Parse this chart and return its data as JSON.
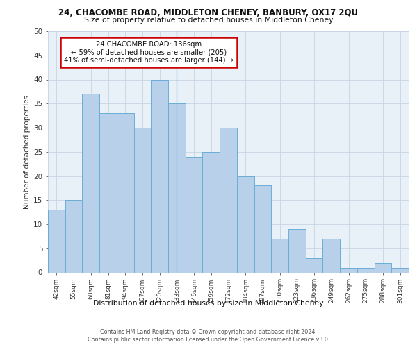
{
  "title1": "24, CHACOMBE ROAD, MIDDLETON CHENEY, BANBURY, OX17 2QU",
  "title2": "Size of property relative to detached houses in Middleton Cheney",
  "xlabel": "Distribution of detached houses by size in Middleton Cheney",
  "ylabel": "Number of detached properties",
  "bin_labels": [
    "42sqm",
    "55sqm",
    "68sqm",
    "81sqm",
    "94sqm",
    "107sqm",
    "120sqm",
    "133sqm",
    "146sqm",
    "159sqm",
    "172sqm",
    "184sqm",
    "197sqm",
    "210sqm",
    "223sqm",
    "236sqm",
    "249sqm",
    "262sqm",
    "275sqm",
    "288sqm",
    "301sqm"
  ],
  "bar_heights": [
    13,
    15,
    37,
    33,
    33,
    30,
    40,
    35,
    24,
    25,
    30,
    20,
    18,
    7,
    9,
    3,
    7,
    1,
    1,
    2,
    1
  ],
  "bar_color": "#b8d0ea",
  "bar_edge_color": "#6aaed6",
  "highlight_index": 7,
  "annotation_line1": "24 CHACOMBE ROAD: 136sqm",
  "annotation_line2": "← 59% of detached houses are smaller (205)",
  "annotation_line3": "41% of semi-detached houses are larger (144) →",
  "annotation_box_color": "#ffffff",
  "annotation_box_edge_color": "#cc0000",
  "footer1": "Contains HM Land Registry data © Crown copyright and database right 2024.",
  "footer2": "Contains public sector information licensed under the Open Government Licence v3.0.",
  "ylim": [
    0,
    50
  ],
  "yticks": [
    0,
    5,
    10,
    15,
    20,
    25,
    30,
    35,
    40,
    45,
    50
  ],
  "plot_bg_color": "#e8f0f8",
  "fig_bg_color": "#ffffff",
  "grid_color": "#c8d4e4"
}
